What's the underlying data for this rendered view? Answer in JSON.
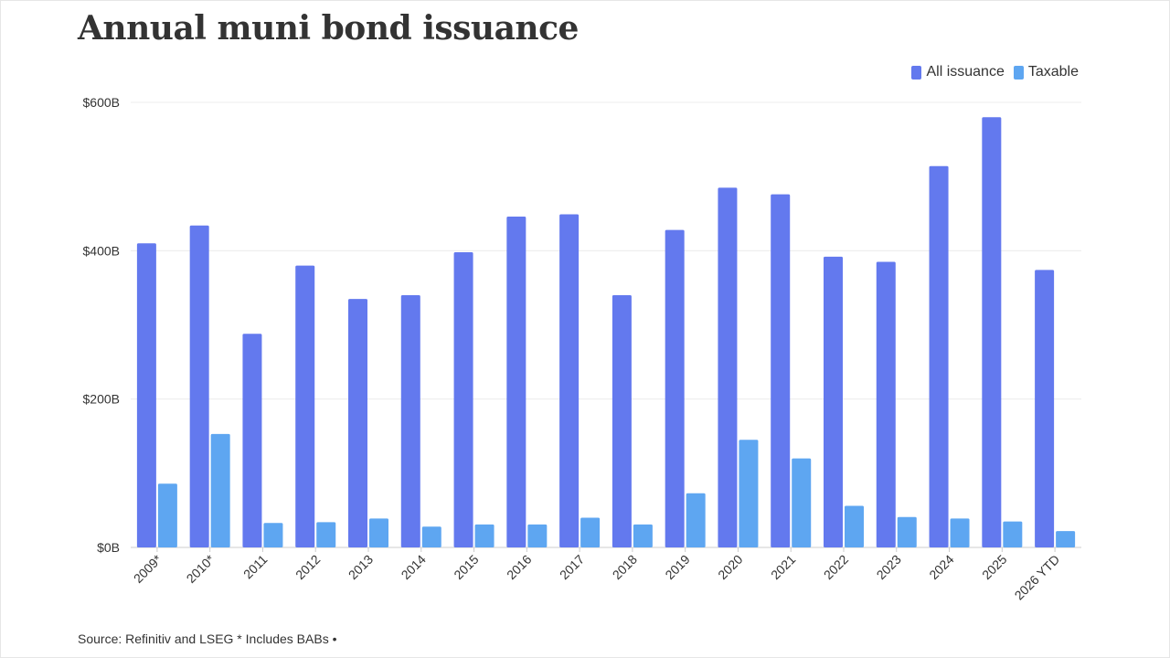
{
  "title": "Annual muni bond issuance",
  "source": "Source: Refinitiv and LSEG * Includes BABs •",
  "colors": {
    "all_issuance": "#6379ee",
    "taxable": "#5ea6f1",
    "grid": "#ececec",
    "axis": "#cccccc",
    "text": "#333333"
  },
  "chart_data": {
    "type": "bar",
    "title": "Annual muni bond issuance",
    "xlabel": "",
    "ylabel": "",
    "ylim": [
      0,
      600
    ],
    "yticks": [
      {
        "value": 0,
        "label": "$0B"
      },
      {
        "value": 200,
        "label": "$200B"
      },
      {
        "value": 400,
        "label": "$400B"
      },
      {
        "value": 600,
        "label": "$600B"
      }
    ],
    "grid": true,
    "legend_position": "top-right",
    "categories": [
      "2009*",
      "2010*",
      "2011",
      "2012",
      "2013",
      "2014",
      "2015",
      "2016",
      "2017",
      "2018",
      "2019",
      "2020",
      "2021",
      "2022",
      "2023",
      "2024",
      "2025",
      "2026 YTD"
    ],
    "series": [
      {
        "name": "All issuance",
        "color": "#6379ee",
        "values": [
          410,
          434,
          288,
          380,
          335,
          340,
          398,
          446,
          449,
          340,
          428,
          485,
          476,
          392,
          385,
          514,
          580,
          374
        ]
      },
      {
        "name": "Taxable",
        "color": "#5ea6f1",
        "values": [
          86,
          153,
          33,
          34,
          39,
          28,
          31,
          31,
          40,
          31,
          73,
          145,
          120,
          56,
          41,
          39,
          35,
          22
        ]
      }
    ]
  }
}
